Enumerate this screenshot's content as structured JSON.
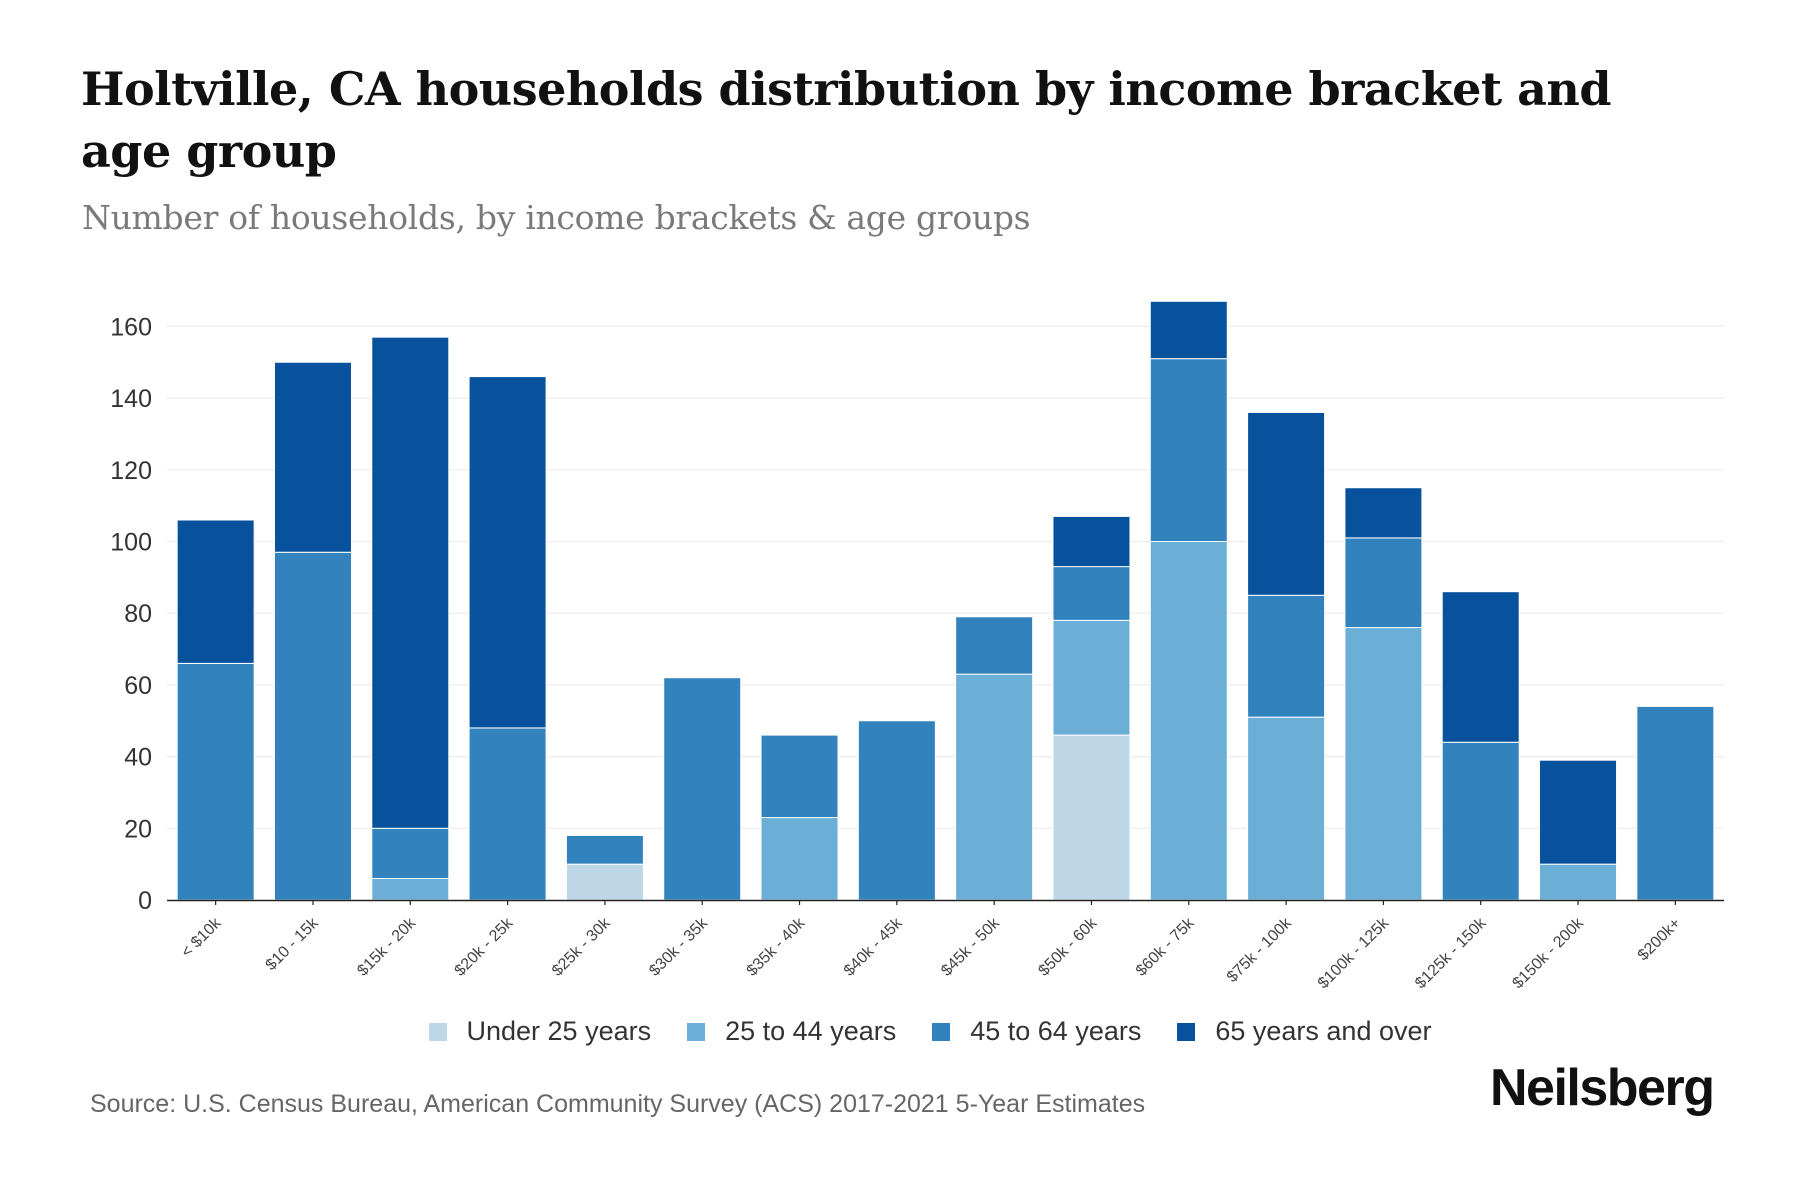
{
  "header": {
    "title": "Holtville, CA households distribution by income bracket and age group",
    "subtitle": "Number of households, by income brackets & age groups"
  },
  "footer": {
    "source": "Source: U.S. Census Bureau, American Community Survey (ACS) 2017-2021 5-Year Estimates",
    "logo": "Neilsberg"
  },
  "chart_data": {
    "type": "bar",
    "stacked": true,
    "title": "Holtville, CA households distribution by income bracket and age group",
    "subtitle": "Number of households, by income brackets & age groups",
    "xlabel": "",
    "ylabel": "",
    "ylim": [
      0,
      170
    ],
    "yticks": [
      0,
      20,
      40,
      60,
      80,
      100,
      120,
      140,
      160
    ],
    "grid": true,
    "legend_position": "bottom",
    "categories": [
      "< $10k",
      "$10 - 15k",
      "$15k - 20k",
      "$20k - 25k",
      "$25k - 30k",
      "$30k - 35k",
      "$35k - 40k",
      "$40k - 45k",
      "$45k - 50k",
      "$50k - 60k",
      "$60k - 75k",
      "$75k - 100k",
      "$100k - 125k",
      "$125k - 150k",
      "$150k - 200k",
      "$200k+"
    ],
    "series": [
      {
        "name": "Under 25 years",
        "color": "#bdd7e7",
        "values": [
          0,
          0,
          0,
          0,
          10,
          0,
          0,
          0,
          0,
          46,
          0,
          0,
          0,
          0,
          0,
          0
        ]
      },
      {
        "name": "25 to 44 years",
        "color": "#6baed6",
        "values": [
          0,
          0,
          6,
          0,
          0,
          0,
          23,
          0,
          63,
          32,
          100,
          51,
          76,
          0,
          10,
          0
        ]
      },
      {
        "name": "45 to 64 years",
        "color": "#3182bd",
        "values": [
          66,
          97,
          14,
          48,
          8,
          62,
          23,
          50,
          16,
          15,
          51,
          34,
          25,
          44,
          0,
          54
        ]
      },
      {
        "name": "65 years and over",
        "color": "#08519c",
        "values": [
          40,
          53,
          137,
          98,
          0,
          0,
          0,
          0,
          0,
          14,
          16,
          51,
          14,
          42,
          29,
          0
        ]
      }
    ],
    "totals": [
      106,
      150,
      157,
      146,
      18,
      62,
      46,
      50,
      79,
      107,
      167,
      136,
      115,
      86,
      39,
      54
    ],
    "source": "Source: U.S. Census Bureau, American Community Survey (ACS) 2017-2021 5-Year Estimates"
  }
}
